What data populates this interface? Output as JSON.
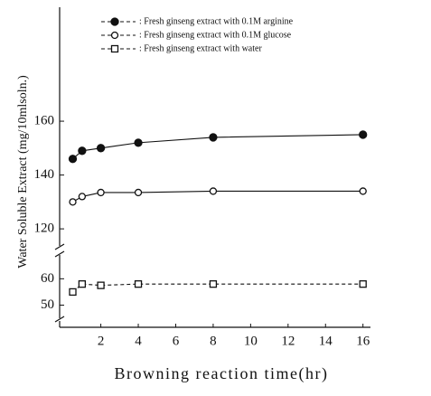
{
  "chart_data": {
    "type": "line",
    "y_label": "Water Soluble Extract (mg/10mlsoln.)",
    "x_label": "Browning reaction time(hr)",
    "x": [
      0.5,
      1,
      2,
      4,
      8,
      16
    ],
    "xlim": [
      -0.2,
      16.4
    ],
    "xticks": [
      2,
      4,
      6,
      8,
      10,
      12,
      14,
      16
    ],
    "y_segments": [
      {
        "ylim": [
          44,
          68
        ],
        "yticks": [
          50,
          60
        ]
      },
      {
        "ylim": [
          115,
          200
        ],
        "yticks": [
          120,
          140,
          160
        ]
      }
    ],
    "series": [
      {
        "name": ": Fresh ginseng extract with 0.1M arginine",
        "color": "#111111",
        "marker": "filled-circle",
        "dashed": false,
        "values": [
          146,
          149,
          150,
          152,
          154,
          155
        ]
      },
      {
        "name": ": Fresh ginseng extract with 0.1M glucose",
        "color": "#111111",
        "marker": "open-circle",
        "dashed": false,
        "values": [
          130,
          132,
          133.5,
          133.5,
          134,
          134
        ]
      },
      {
        "name": ": Fresh ginseng extract with water",
        "color": "#111111",
        "marker": "open-square",
        "dashed": true,
        "values": [
          55,
          58,
          57.5,
          58,
          58,
          58
        ]
      }
    ]
  }
}
